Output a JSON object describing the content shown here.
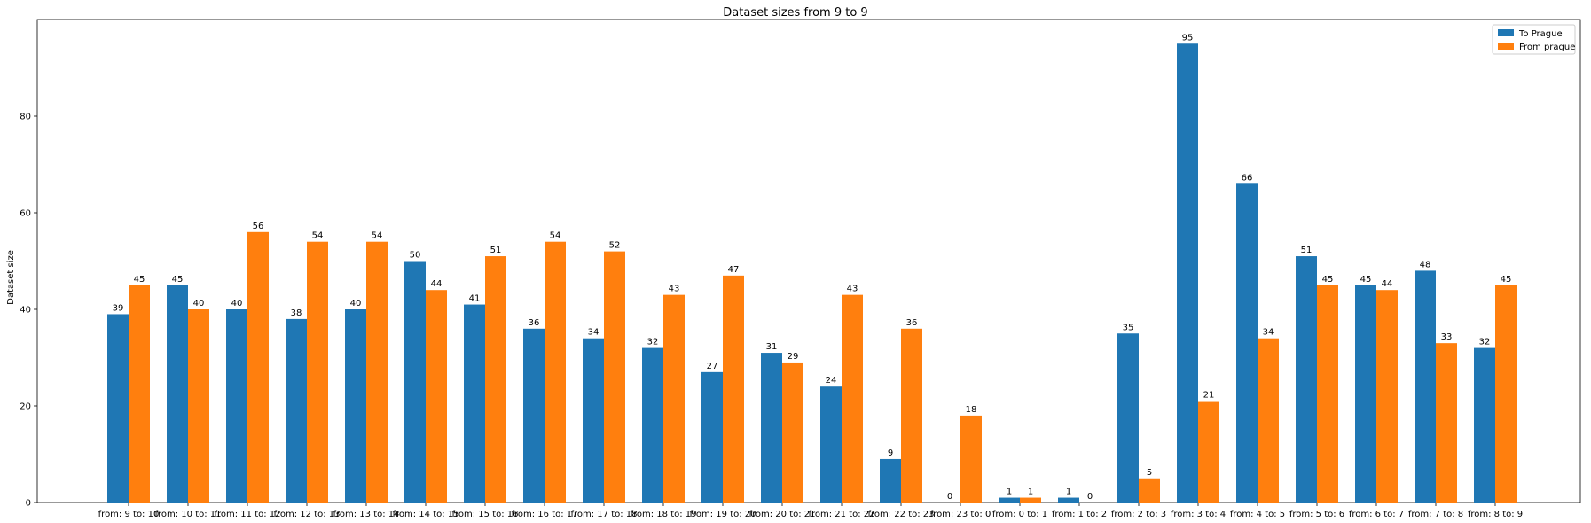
{
  "chart_data": {
    "type": "bar",
    "title": "Dataset sizes from 9 to 9",
    "xlabel": "",
    "ylabel": "Dataset size",
    "ylim": [
      0,
      100
    ],
    "yticks": [
      0,
      20,
      40,
      60,
      80
    ],
    "grid": false,
    "legend_position": "top-right",
    "categories": [
      "from: 9 to: 10",
      "from: 10 to: 11",
      "from: 11 to: 12",
      "from: 12 to: 13",
      "from: 13 to: 14",
      "from: 14 to: 15",
      "from: 15 to: 16",
      "from: 16 to: 17",
      "from: 17 to: 18",
      "from: 18 to: 19",
      "from: 19 to: 20",
      "from: 20 to: 21",
      "from: 21 to: 22",
      "from: 22 to: 23",
      "from: 23 to: 0",
      "from: 0 to: 1",
      "from: 1 to: 2",
      "from: 2 to: 3",
      "from: 3 to: 4",
      "from: 4 to: 5",
      "from: 5 to: 6",
      "from: 6 to: 7",
      "from: 7 to: 8",
      "from: 8 to: 9"
    ],
    "series": [
      {
        "name": "To Prague",
        "color": "#1f77b4",
        "values": [
          39,
          45,
          40,
          38,
          40,
          50,
          41,
          36,
          34,
          32,
          27,
          31,
          24,
          9,
          0,
          1,
          1,
          35,
          95,
          66,
          51,
          45,
          48,
          32
        ]
      },
      {
        "name": "From prague",
        "color": "#ff7f0e",
        "values": [
          45,
          40,
          56,
          54,
          54,
          44,
          51,
          54,
          52,
          43,
          47,
          29,
          43,
          36,
          18,
          1,
          0,
          5,
          21,
          34,
          45,
          44,
          33,
          45
        ]
      }
    ]
  }
}
